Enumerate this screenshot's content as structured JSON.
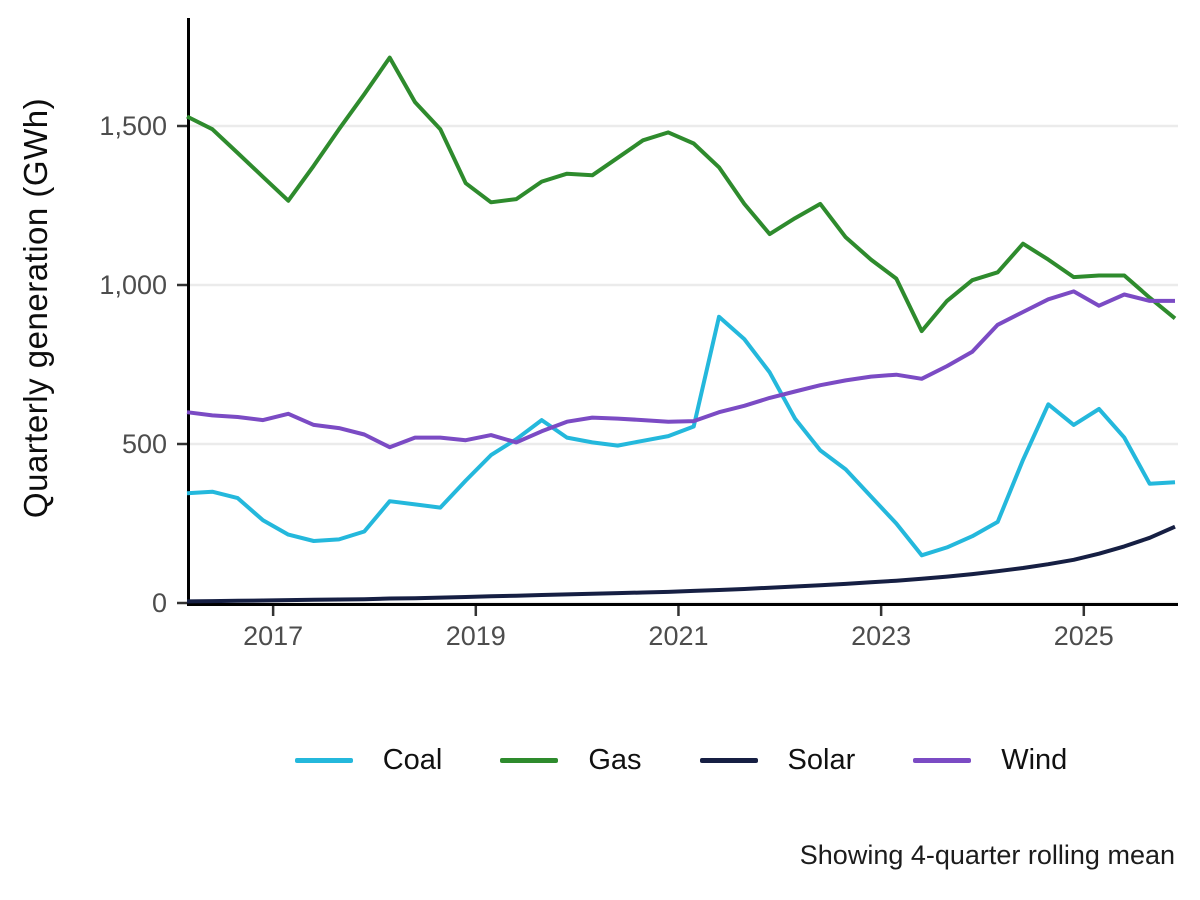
{
  "chart_data": {
    "type": "line",
    "title": "",
    "xlabel": "",
    "ylabel": "Quarterly generation (GWh)",
    "caption": "Showing 4-quarter rolling mean",
    "grid": "horizontal",
    "legend_position": "bottom",
    "x_unit": "quarter",
    "n_points": 40,
    "x_quarters": [
      "2016 Q1",
      "2016 Q2",
      "2016 Q3",
      "2016 Q4",
      "2017 Q1",
      "2017 Q2",
      "2017 Q3",
      "2017 Q4",
      "2018 Q1",
      "2018 Q2",
      "2018 Q3",
      "2018 Q4",
      "2019 Q1",
      "2019 Q2",
      "2019 Q3",
      "2019 Q4",
      "2020 Q1",
      "2020 Q2",
      "2020 Q3",
      "2020 Q4",
      "2021 Q1",
      "2021 Q2",
      "2021 Q3",
      "2021 Q4",
      "2022 Q1",
      "2022 Q2",
      "2022 Q3",
      "2022 Q4",
      "2023 Q1",
      "2023 Q2",
      "2023 Q3",
      "2023 Q4",
      "2024 Q1",
      "2024 Q2",
      "2024 Q3",
      "2024 Q4",
      "2025 Q1",
      "2025 Q2",
      "2025 Q3",
      "2025 Q4"
    ],
    "x_ticks": {
      "labels": [
        "2017",
        "2019",
        "2021",
        "2023",
        "2025"
      ],
      "positions_k": [
        3.4,
        11.4,
        19.4,
        27.4,
        35.4
      ]
    },
    "y_ticks": {
      "labels": [
        "0",
        "500",
        "1,000",
        "1,500"
      ],
      "values": [
        0,
        500,
        1000,
        1500
      ]
    },
    "ylim": [
      0,
      1835
    ],
    "series": [
      {
        "name": "Coal",
        "color": "#24b8dc",
        "values": [
          345,
          350,
          330,
          260,
          215,
          195,
          200,
          225,
          320,
          310,
          300,
          385,
          465,
          515,
          575,
          520,
          505,
          495,
          510,
          525,
          555,
          900,
          830,
          725,
          580,
          480,
          420,
          335,
          250,
          150,
          175,
          210,
          255,
          450,
          625,
          560,
          610,
          520,
          375,
          380
        ]
      },
      {
        "name": "Gas",
        "color": "#2e8b2d",
        "values": [
          1530,
          1490,
          1415,
          1340,
          1265,
          1375,
          1490,
          1600,
          1715,
          1575,
          1490,
          1320,
          1260,
          1270,
          1325,
          1350,
          1345,
          1400,
          1455,
          1480,
          1445,
          1370,
          1255,
          1160,
          1210,
          1255,
          1150,
          1080,
          1020,
          855,
          950,
          1015,
          1040,
          1130,
          1080,
          1025,
          1030,
          1030,
          960,
          895
        ]
      },
      {
        "name": "Solar",
        "color": "#161f43",
        "values": [
          5,
          6,
          7,
          8,
          9,
          10,
          11,
          12,
          14,
          15,
          17,
          19,
          21,
          23,
          25,
          27,
          29,
          31,
          33,
          35,
          38,
          41,
          44,
          48,
          52,
          56,
          60,
          65,
          70,
          76,
          83,
          91,
          100,
          110,
          122,
          136,
          155,
          178,
          205,
          240
        ]
      },
      {
        "name": "Wind",
        "color": "#7b4bc4",
        "values": [
          600,
          590,
          585,
          575,
          595,
          560,
          550,
          530,
          490,
          520,
          520,
          512,
          528,
          505,
          540,
          570,
          583,
          580,
          575,
          570,
          572,
          600,
          620,
          645,
          665,
          685,
          700,
          712,
          718,
          705,
          745,
          790,
          875,
          915,
          955,
          980,
          935,
          970,
          950,
          950
        ]
      }
    ]
  },
  "style": {
    "axis_color": "#000000",
    "tick_mark_color": "#333333",
    "tick_label_color": "#4d4d4d",
    "grid_color": "#ebebeb",
    "background": "#ffffff",
    "line_width": 4
  }
}
